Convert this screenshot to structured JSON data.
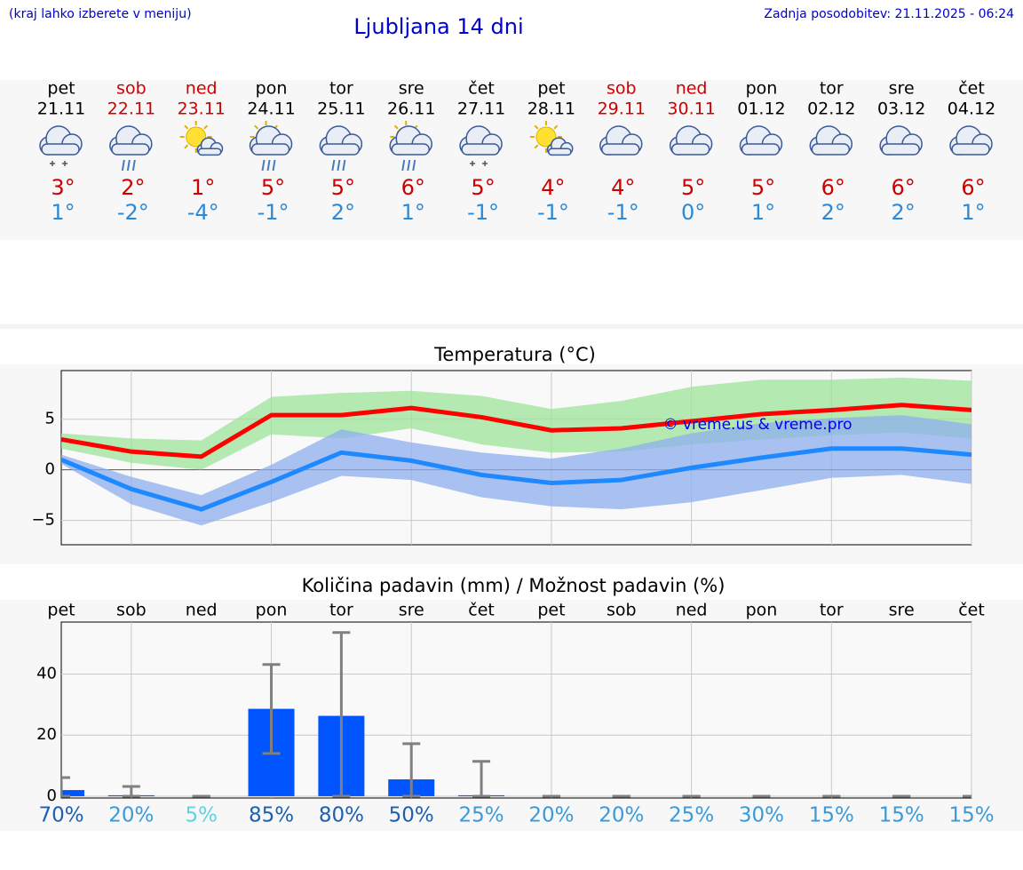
{
  "header": {
    "hint": "(kraj lahko izberete v meniju)",
    "title": "Ljubljana 14 dni",
    "updated": "Zadnja posodobitev: 21.11.2025 - 06:24"
  },
  "forecast": [
    {
      "day": "pet",
      "date": "21.11",
      "max": "3°",
      "min": "1°",
      "color": "#000000"
    },
    {
      "day": "sob",
      "date": "22.11",
      "max": "2°",
      "min": "-2°",
      "color": "#cc0000"
    },
    {
      "day": "ned",
      "date": "23.11",
      "max": "1°",
      "min": "-4°",
      "color": "#cc0000"
    },
    {
      "day": "pon",
      "date": "24.11",
      "max": "5°",
      "min": "-1°",
      "color": "#000000"
    },
    {
      "day": "tor",
      "date": "25.11",
      "max": "5°",
      "min": "2°",
      "color": "#000000"
    },
    {
      "day": "sre",
      "date": "26.11",
      "max": "6°",
      "min": "1°",
      "color": "#000000"
    },
    {
      "day": "čet",
      "date": "27.11",
      "max": "5°",
      "min": "-1°",
      "color": "#000000"
    },
    {
      "day": "pet",
      "date": "28.11",
      "max": "4°",
      "min": "-1°",
      "color": "#000000"
    },
    {
      "day": "sob",
      "date": "29.11",
      "max": "4°",
      "min": "-1°",
      "color": "#cc0000"
    },
    {
      "day": "ned",
      "date": "30.11",
      "max": "5°",
      "min": "0°",
      "color": "#cc0000"
    },
    {
      "day": "pon",
      "date": "01.12",
      "max": "5°",
      "min": "1°",
      "color": "#000000"
    },
    {
      "day": "tor",
      "date": "02.12",
      "max": "6°",
      "min": "2°",
      "color": "#000000"
    },
    {
      "day": "sre",
      "date": "03.12",
      "max": "6°",
      "min": "2°",
      "color": "#000000"
    },
    {
      "day": "čet",
      "date": "04.12",
      "max": "6°",
      "min": "1°",
      "color": "#000000"
    }
  ],
  "chart_data": [
    {
      "type": "line",
      "title": "Temperatura (°C)",
      "ylim": [
        -7.4,
        9.8
      ],
      "yticks": [
        {
          "value": -5,
          "label": "−5"
        },
        0,
        5
      ],
      "grid": true,
      "watermark": "© vreme.us & vreme.pro",
      "series": [
        {
          "color": "#ff0000",
          "values": [
            3.0,
            1.8,
            1.3,
            5.4,
            5.4,
            6.1,
            5.2,
            3.9,
            4.1,
            4.8,
            5.5,
            5.9,
            6.4,
            5.9
          ],
          "band": {
            "color": "#9ee39a",
            "low": [
              2.1,
              0.7,
              0,
              3.5,
              3.1,
              4.1,
              2.5,
              1.7,
              1.8,
              2.5,
              3.0,
              3.4,
              3.7,
              3.1
            ],
            "high": [
              3.6,
              3.1,
              2.9,
              7.2,
              7.6,
              7.8,
              7.3,
              6.0,
              6.8,
              8.2,
              8.9,
              8.9,
              9.1,
              8.8
            ]
          }
        },
        {
          "color": "#1e88ff",
          "values": [
            1.0,
            -1.9,
            -3.9,
            -1.2,
            1.7,
            0.9,
            -0.5,
            -1.3,
            -1.0,
            0.2,
            1.2,
            2.1,
            2.1,
            1.5
          ],
          "band": {
            "color": "#8eaeee",
            "low": [
              0.6,
              -3.4,
              -5.5,
              -3.2,
              -0.6,
              -1.0,
              -2.7,
              -3.6,
              -3.9,
              -3.2,
              -2.0,
              -0.8,
              -0.5,
              -1.4
            ],
            "high": [
              1.5,
              -0.7,
              -2.5,
              0.5,
              4.0,
              2.7,
              1.7,
              1.1,
              2.1,
              3.6,
              4.6,
              5.1,
              5.4,
              4.5
            ]
          }
        }
      ]
    },
    {
      "type": "bar",
      "title": "Količina padavin (mm) / Možnost padavin (%)",
      "color": "#0055ff",
      "categories": [
        "pet",
        "sob",
        "ned",
        "pon",
        "tor",
        "sre",
        "čet",
        "pet",
        "sob",
        "ned",
        "pon",
        "tor",
        "sre",
        "čet"
      ],
      "values": [
        2.0,
        0.3,
        0,
        28.6,
        26.3,
        5.5,
        0.3,
        0,
        0,
        0,
        0,
        0,
        0,
        0
      ],
      "error_low": [
        0,
        0,
        0,
        14.0,
        0,
        0,
        0,
        0,
        0,
        0,
        0,
        0,
        0,
        0
      ],
      "error_high": [
        6.1,
        3.2,
        0,
        43.1,
        53.6,
        17.2,
        11.4,
        0,
        0,
        0,
        0,
        0,
        0,
        0
      ],
      "chance": {
        "values": [
          70,
          20,
          5,
          85,
          80,
          50,
          25,
          20,
          20,
          25,
          30,
          15,
          15,
          15
        ],
        "labels": [
          "70%",
          "20%",
          "5%",
          "85%",
          "80%",
          "50%",
          "25%",
          "20%",
          "20%",
          "25%",
          "30%",
          "15%",
          "15%",
          "15%"
        ]
      },
      "ylim": [
        -0.6,
        57
      ],
      "yticks": [
        0,
        20,
        40
      ],
      "grid": true
    }
  ]
}
